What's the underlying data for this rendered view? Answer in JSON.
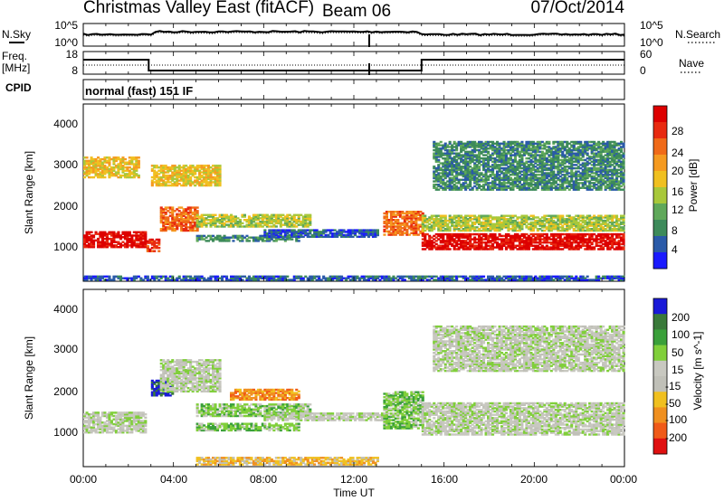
{
  "header": {
    "title": "Christmas Valley East (fitACF)",
    "beam": "Beam 06",
    "date": "07/Oct/2014"
  },
  "mode_text": "normal (fast) 151 IF",
  "left_labels": {
    "nsky": "N.Sky",
    "freq": "Freq.",
    "freq_unit": "[MHz]",
    "cpid": "CPID"
  },
  "right_labels": {
    "nsearch": "N.Search",
    "nave": "Nave"
  },
  "x_axis": {
    "label": "Time UT",
    "ticks": [
      "00:00",
      "04:00",
      "08:00",
      "12:00",
      "16:00",
      "20:00",
      "00:00"
    ]
  },
  "colors": {
    "power": [
      "#1a1aff",
      "#2a5aa8",
      "#3d8a5a",
      "#5fa85a",
      "#a8c83a",
      "#f0c020",
      "#f59a20",
      "#f06a18",
      "#e82a10",
      "#dd0000"
    ],
    "velocity": [
      "#1a1ad8",
      "#3a7a3a",
      "#3aa03a",
      "#80cf3a",
      "#c8c8c0",
      "#c0c0b8",
      "#f0c020",
      "#f09020",
      "#f05a18",
      "#e01010"
    ]
  },
  "chart_data": [
    {
      "type": "line",
      "title": "N.Sky / N.Search",
      "yticks_left": [
        "10^5",
        "10^0"
      ],
      "yticks_right": [
        "10^5",
        "10^0"
      ],
      "x_range_hours": [
        0,
        24
      ]
    },
    {
      "type": "line",
      "title": "Freq. / Nave",
      "yticks_left": [
        "18",
        "8"
      ],
      "yticks_right": [
        "60",
        "0"
      ],
      "freq_segments": [
        {
          "start_h": 0.0,
          "end_h": 2.9,
          "freq_mhz": 16
        },
        {
          "start_h": 2.9,
          "end_h": 15.0,
          "freq_mhz": 10
        },
        {
          "start_h": 15.0,
          "end_h": 24.0,
          "freq_mhz": 16
        }
      ]
    },
    {
      "type": "heatmap",
      "ylabel": "Slant Range [km]",
      "yticks": [
        "4000",
        "3000",
        "2000",
        "1000"
      ],
      "y_range_km": [
        180,
        4500
      ],
      "colorbar_label": "Power [dB]",
      "colorbar_ticks": [
        "28",
        "24",
        "20",
        "16",
        "12",
        "8",
        "4"
      ],
      "bands": [
        {
          "start_h": 0.0,
          "end_h": 2.8,
          "range_lo": 1000,
          "range_hi": 1400,
          "bin": 9
        },
        {
          "start_h": 2.8,
          "end_h": 3.4,
          "range_lo": 900,
          "range_hi": 1200,
          "bin": 8
        },
        {
          "start_h": 3.4,
          "end_h": 5.0,
          "range_lo": 1400,
          "range_hi": 2000,
          "bin": 7
        },
        {
          "start_h": 5.0,
          "end_h": 10.0,
          "range_lo": 1500,
          "range_hi": 1800,
          "bin": 4
        },
        {
          "start_h": 5.0,
          "end_h": 9.5,
          "range_lo": 1150,
          "range_hi": 1300,
          "bin": 2
        },
        {
          "start_h": 8.0,
          "end_h": 13.0,
          "range_lo": 1250,
          "range_hi": 1450,
          "bin": 1
        },
        {
          "start_h": 13.3,
          "end_h": 15.0,
          "range_lo": 1300,
          "range_hi": 1900,
          "bin": 7
        },
        {
          "start_h": 15.0,
          "end_h": 24.0,
          "range_lo": 950,
          "range_hi": 1350,
          "bin": 9
        },
        {
          "start_h": 15.0,
          "end_h": 24.0,
          "range_lo": 1400,
          "range_hi": 1800,
          "bin": 4
        },
        {
          "start_h": 0.0,
          "end_h": 2.5,
          "range_lo": 2700,
          "range_hi": 3200,
          "bin": 5
        },
        {
          "start_h": 3.0,
          "end_h": 6.0,
          "range_lo": 2500,
          "range_hi": 3000,
          "bin": 5
        },
        {
          "start_h": 15.5,
          "end_h": 24.0,
          "range_lo": 2400,
          "range_hi": 3600,
          "bin": 2
        },
        {
          "start_h": 0.0,
          "end_h": 24.0,
          "range_lo": 200,
          "range_hi": 320,
          "bin": 1
        }
      ]
    },
    {
      "type": "heatmap",
      "ylabel": "Slant Range [km]",
      "yticks": [
        "4000",
        "3000",
        "2000",
        "1000"
      ],
      "y_range_km": [
        180,
        4500
      ],
      "colorbar_label": "Velocity [m s^-1]",
      "colorbar_ticks": [
        "200",
        "100",
        "50",
        "15",
        "-15",
        "-50",
        "-100",
        "-200"
      ],
      "bands": [
        {
          "start_h": 0.0,
          "end_h": 2.8,
          "range_lo": 1000,
          "range_hi": 1500,
          "bin": 4
        },
        {
          "start_h": 3.0,
          "end_h": 4.0,
          "range_lo": 1900,
          "range_hi": 2300,
          "bin": 0
        },
        {
          "start_h": 3.4,
          "end_h": 6.0,
          "range_lo": 2000,
          "range_hi": 2800,
          "bin": 4
        },
        {
          "start_h": 6.5,
          "end_h": 9.5,
          "range_lo": 1800,
          "range_hi": 2050,
          "bin": 7
        },
        {
          "start_h": 5.0,
          "end_h": 10.0,
          "range_lo": 1400,
          "range_hi": 1700,
          "bin": 3
        },
        {
          "start_h": 5.0,
          "end_h": 9.5,
          "range_lo": 1050,
          "range_hi": 1250,
          "bin": 3
        },
        {
          "start_h": 8.0,
          "end_h": 13.5,
          "range_lo": 1300,
          "range_hi": 1500,
          "bin": 4
        },
        {
          "start_h": 13.3,
          "end_h": 15.0,
          "range_lo": 1100,
          "range_hi": 2000,
          "bin": 3
        },
        {
          "start_h": 15.0,
          "end_h": 24.0,
          "range_lo": 950,
          "range_hi": 1750,
          "bin": 4
        },
        {
          "start_h": 15.5,
          "end_h": 24.0,
          "range_lo": 2500,
          "range_hi": 3600,
          "bin": 4
        },
        {
          "start_h": 5.0,
          "end_h": 13.0,
          "range_lo": 220,
          "range_hi": 400,
          "bin": 6
        }
      ]
    }
  ]
}
